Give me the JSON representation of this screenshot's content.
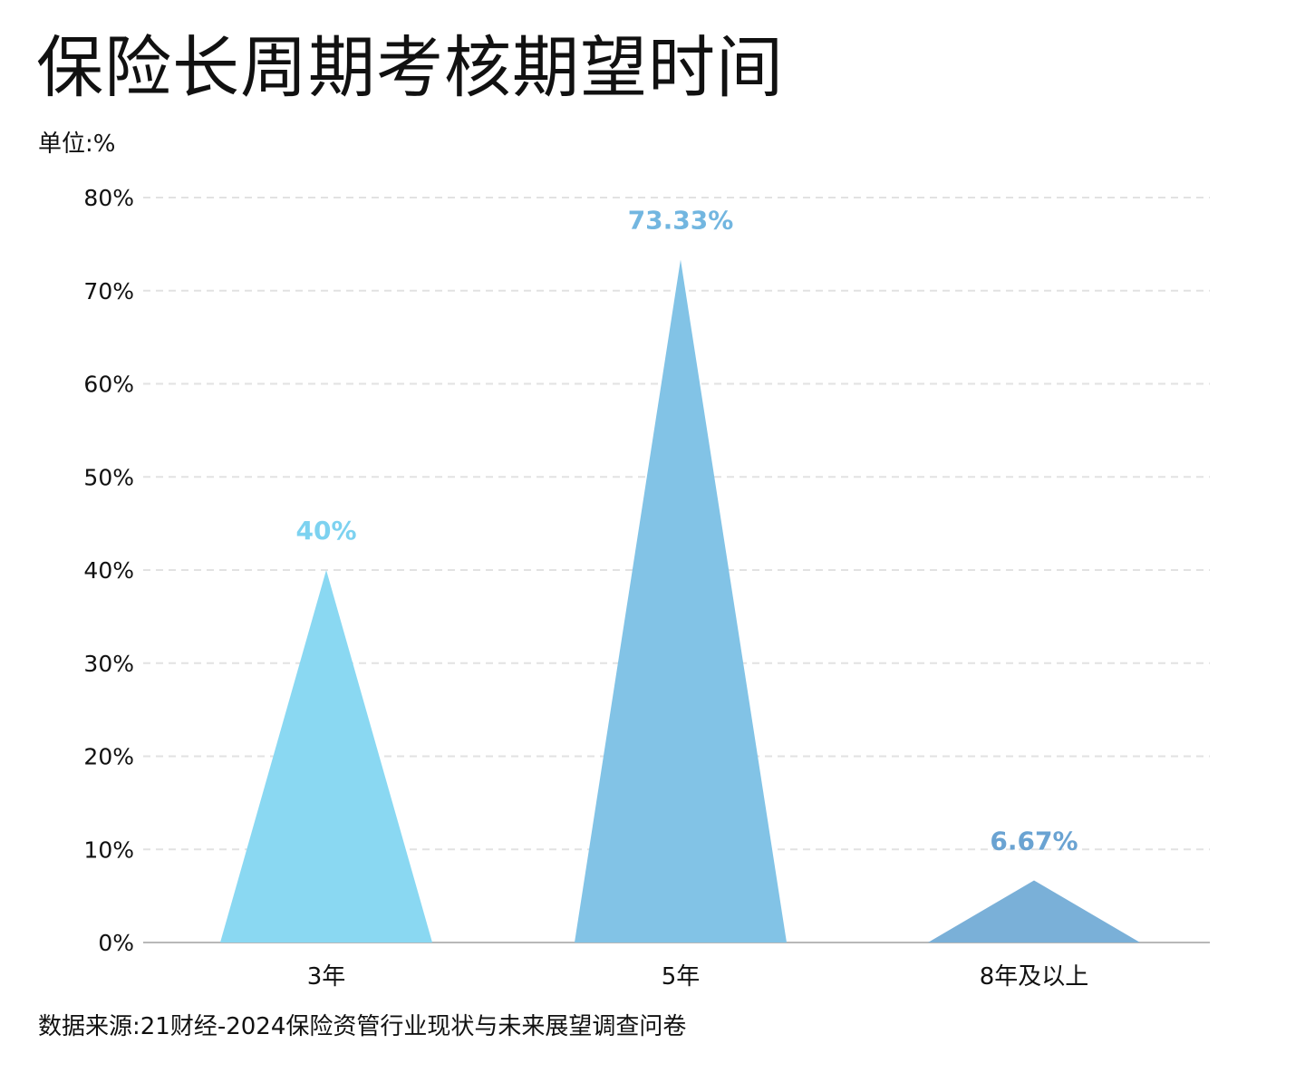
{
  "header": {
    "title": "保险长周期考核期望时间",
    "unit": "单位:%"
  },
  "footer": {
    "source": "数据来源:21财经-2024保险资管行业现状与未来展望调查问卷"
  },
  "chart_data": {
    "type": "bar",
    "shape": "triangle",
    "categories": [
      "3年",
      "5年",
      "8年及以上"
    ],
    "values": [
      40,
      73.33,
      6.67
    ],
    "data_labels": [
      "40%",
      "73.33%",
      "6.67%"
    ],
    "colors": [
      "#8ad8f2",
      "#82c3e6",
      "#7ab0d8"
    ],
    "label_colors": [
      "#7dd2f0",
      "#72b6e0",
      "#6aa3d2"
    ],
    "ylim": [
      0,
      80
    ],
    "yticks": [
      0,
      10,
      20,
      30,
      40,
      50,
      60,
      70,
      80
    ],
    "ytick_labels": [
      "0%",
      "10%",
      "20%",
      "30%",
      "40%",
      "50%",
      "60%",
      "70%",
      "80%"
    ],
    "grid": true,
    "grid_style": "dashed",
    "legend": "none"
  }
}
